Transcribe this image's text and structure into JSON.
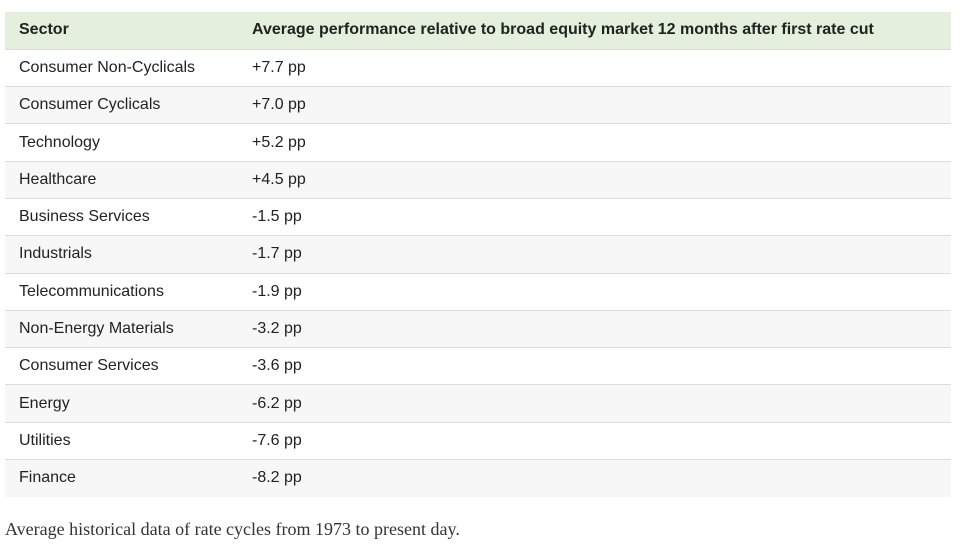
{
  "table": {
    "header": [
      "Sector",
      "Average performance relative to broad equity market 12 months after first rate cut"
    ],
    "rows": [
      [
        "Consumer Non-Cyclicals",
        "+7.7 pp"
      ],
      [
        "Consumer Cyclicals",
        "+7.0 pp"
      ],
      [
        "Technology",
        "+5.2 pp"
      ],
      [
        "Healthcare",
        "+4.5 pp"
      ],
      [
        "Business Services",
        "-1.5 pp"
      ],
      [
        "Industrials",
        "-1.7 pp"
      ],
      [
        "Telecommunications",
        "-1.9 pp"
      ],
      [
        "Non-Energy Materials",
        "-3.2 pp"
      ],
      [
        "Consumer Services",
        "-3.6 pp"
      ],
      [
        "Energy",
        "-6.2 pp"
      ],
      [
        "Utilities",
        "-7.6 pp"
      ],
      [
        "Finance",
        "-8.2 pp"
      ]
    ]
  },
  "caption": "Average historical data of rate cycles from 1973 to present day."
}
